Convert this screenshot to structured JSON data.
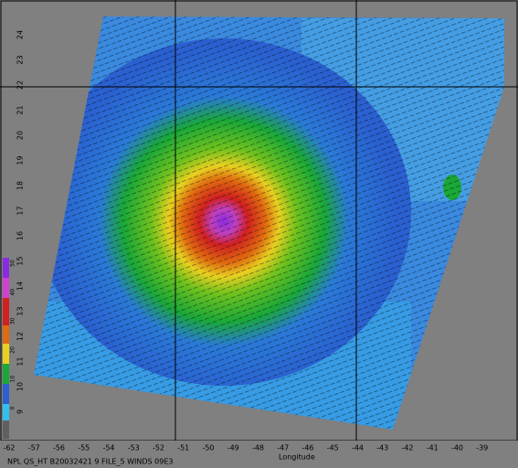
{
  "map": {
    "x_labels": [
      "-62",
      "-57",
      "-56",
      "-55",
      "-54",
      "-53",
      "-52",
      "-51",
      "-50",
      "-49",
      "-48",
      "-47",
      "-46",
      "-45",
      "-44",
      "-43",
      "-42",
      "-41",
      "-40",
      "-39"
    ],
    "y_labels": [
      "24",
      "23",
      "22",
      "21",
      "20",
      "19",
      "18",
      "17",
      "16",
      "15",
      "14",
      "13",
      "12",
      "11",
      "10",
      "9"
    ],
    "colorbar_labels": [
      "50",
      "40",
      "30",
      "20",
      "10",
      "0"
    ],
    "caption": "NPL QS_HT B20032421 9 FILE_5 WINDS 09E3",
    "x_axis_title": "Longitude"
  }
}
